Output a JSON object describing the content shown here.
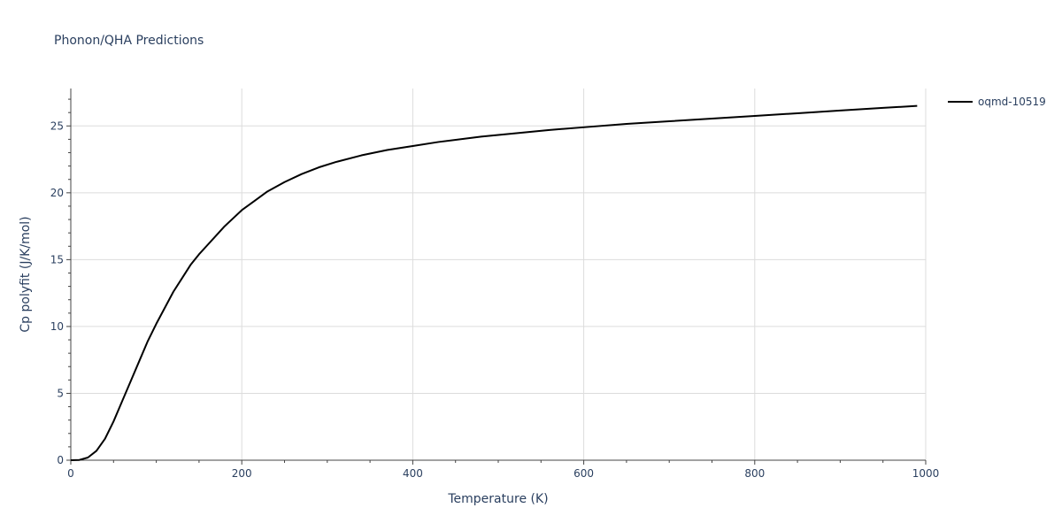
{
  "chart_data": {
    "type": "line",
    "title": "Phonon/QHA Predictions",
    "xlabel": "Temperature (K)",
    "ylabel": "Cp polyfit (J/K/mol)",
    "xlim": [
      0,
      1000
    ],
    "ylim": [
      0,
      27.8
    ],
    "x_ticks": [
      0,
      200,
      400,
      600,
      800,
      1000
    ],
    "y_ticks": [
      0,
      5,
      10,
      15,
      20,
      25
    ],
    "grid": true,
    "legend": "top-right",
    "series": [
      {
        "name": "oqmd-10519",
        "color": "#000000",
        "x": [
          0,
          10,
          20,
          30,
          40,
          50,
          60,
          70,
          80,
          90,
          100,
          110,
          120,
          130,
          140,
          150,
          160,
          170,
          180,
          190,
          200,
          215,
          230,
          250,
          270,
          290,
          310,
          340,
          370,
          400,
          430,
          480,
          520,
          560,
          600,
          650,
          700,
          750,
          800,
          850,
          900,
          950,
          990
        ],
        "y": [
          0,
          0.02,
          0.2,
          0.7,
          1.6,
          2.9,
          4.4,
          5.9,
          7.4,
          8.9,
          10.2,
          11.4,
          12.6,
          13.6,
          14.6,
          15.4,
          16.1,
          16.8,
          17.5,
          18.1,
          18.7,
          19.4,
          20.1,
          20.8,
          21.4,
          21.9,
          22.3,
          22.8,
          23.2,
          23.5,
          23.8,
          24.2,
          24.45,
          24.7,
          24.9,
          25.15,
          25.35,
          25.55,
          25.75,
          25.95,
          26.15,
          26.35,
          26.5
        ]
      }
    ]
  }
}
